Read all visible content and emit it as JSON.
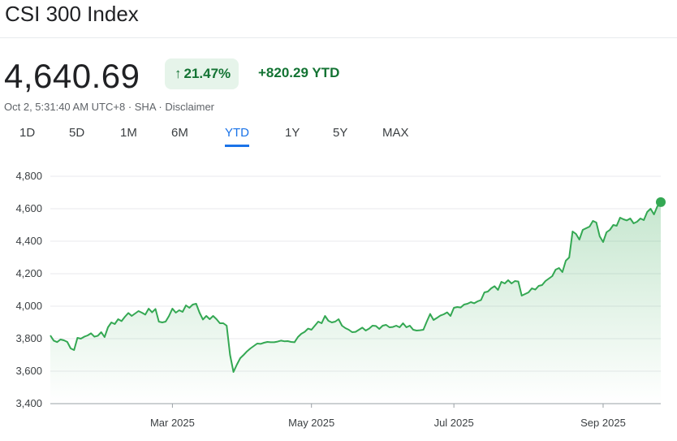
{
  "header": {
    "title": "CSI 300 Index"
  },
  "quote": {
    "price": "4,640.69",
    "percent_change": "21.47%",
    "arrow": "↑",
    "abs_change": "+820.29 YTD",
    "meta": "Oct 2, 5:31:40 AM UTC+8 · SHA · Disclaimer"
  },
  "range_tabs": [
    {
      "label": "1D",
      "active": false
    },
    {
      "label": "5D",
      "active": false
    },
    {
      "label": "1M",
      "active": false
    },
    {
      "label": "6M",
      "active": false
    },
    {
      "label": "YTD",
      "active": true
    },
    {
      "label": "1Y",
      "active": false
    },
    {
      "label": "5Y",
      "active": false
    },
    {
      "label": "MAX",
      "active": false
    }
  ],
  "colors": {
    "line": "#34a853",
    "positive": "#137333",
    "pill_bg": "#e6f4ea",
    "active_tab": "#1a73e8",
    "grid": "#e8eaed"
  },
  "chart_data": {
    "type": "area",
    "ylim": [
      3400,
      4800
    ],
    "yticks": [
      3400,
      3600,
      3800,
      4000,
      4200,
      4400,
      4600,
      4800
    ],
    "ytick_labels": [
      "3,400",
      "3,600",
      "3,800",
      "4,000",
      "4,200",
      "4,400",
      "4,600",
      "4,800"
    ],
    "xticks": [
      {
        "label": "Mar 2025",
        "index": 36
      },
      {
        "label": "May 2025",
        "index": 77
      },
      {
        "label": "Jul 2025",
        "index": 119
      },
      {
        "label": "Sep 2025",
        "index": 163
      }
    ],
    "grid": true,
    "series": [
      {
        "values": [
          3820,
          3788,
          3779,
          3795,
          3790,
          3780,
          3740,
          3730,
          3805,
          3800,
          3812,
          3820,
          3833,
          3812,
          3818,
          3840,
          3810,
          3870,
          3900,
          3890,
          3920,
          3908,
          3935,
          3958,
          3940,
          3955,
          3970,
          3960,
          3948,
          3985,
          3962,
          3983,
          3905,
          3900,
          3905,
          3940,
          3985,
          3960,
          3975,
          3965,
          4005,
          3990,
          4010,
          4015,
          3960,
          3918,
          3940,
          3920,
          3940,
          3920,
          3895,
          3895,
          3880,
          3700,
          3595,
          3640,
          3680,
          3700,
          3722,
          3740,
          3755,
          3770,
          3768,
          3775,
          3780,
          3778,
          3778,
          3782,
          3788,
          3784,
          3785,
          3780,
          3778,
          3810,
          3830,
          3842,
          3862,
          3855,
          3880,
          3905,
          3895,
          3940,
          3910,
          3900,
          3905,
          3920,
          3880,
          3865,
          3855,
          3840,
          3842,
          3855,
          3868,
          3850,
          3862,
          3880,
          3878,
          3860,
          3880,
          3885,
          3870,
          3872,
          3880,
          3870,
          3895,
          3870,
          3880,
          3855,
          3850,
          3852,
          3855,
          3905,
          3952,
          3915,
          3928,
          3942,
          3950,
          3962,
          3940,
          3990,
          3995,
          3992,
          4010,
          4015,
          4025,
          4018,
          4030,
          4038,
          4085,
          4090,
          4110,
          4123,
          4100,
          4150,
          4140,
          4160,
          4140,
          4155,
          4152,
          4065,
          4075,
          4085,
          4110,
          4102,
          4125,
          4130,
          4155,
          4170,
          4185,
          4225,
          4235,
          4210,
          4280,
          4300,
          4460,
          4445,
          4410,
          4470,
          4480,
          4490,
          4525,
          4515,
          4430,
          4395,
          4455,
          4470,
          4500,
          4495,
          4545,
          4535,
          4528,
          4540,
          4510,
          4520,
          4540,
          4530,
          4580,
          4600,
          4565,
          4615,
          4640.69
        ]
      }
    ]
  }
}
